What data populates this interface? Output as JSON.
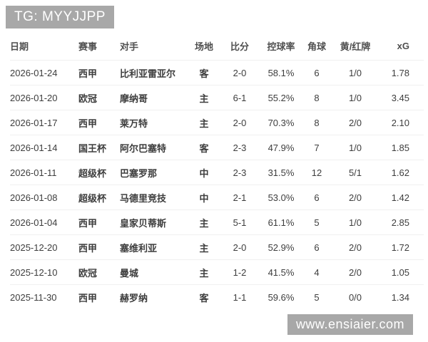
{
  "badges": {
    "top_left": "TG: MYYJJPP",
    "bottom_right": "www.ensiaier.com"
  },
  "colors": {
    "page_bg": "#ffffff",
    "badge_bg": "#a8a8a8",
    "badge_text": "#ffffff",
    "header_text": "#4f4f4f",
    "cell_text": "#3d3d3d",
    "row_border": "#f0f0f0"
  },
  "table": {
    "columns": [
      {
        "key": "date",
        "label": "日期",
        "align": "left",
        "cjk": false
      },
      {
        "key": "competition",
        "label": "赛事",
        "align": "left",
        "cjk": true
      },
      {
        "key": "opponent",
        "label": "对手",
        "align": "left",
        "cjk": true
      },
      {
        "key": "venue",
        "label": "场地",
        "align": "center",
        "cjk": true
      },
      {
        "key": "score",
        "label": "比分",
        "align": "center",
        "cjk": false
      },
      {
        "key": "possession",
        "label": "控球率",
        "align": "center",
        "cjk": false
      },
      {
        "key": "corners",
        "label": "角球",
        "align": "center",
        "cjk": false
      },
      {
        "key": "cards",
        "label": "黄/红牌",
        "align": "center",
        "cjk": false
      },
      {
        "key": "xg",
        "label": "xG",
        "align": "right",
        "cjk": false
      }
    ],
    "rows": [
      {
        "date": "2026-01-24",
        "competition": "西甲",
        "opponent": "比利亚雷亚尔",
        "venue": "客",
        "score": "2-0",
        "possession": "58.1%",
        "corners": "6",
        "cards": "1/0",
        "xg": "1.78"
      },
      {
        "date": "2026-01-20",
        "competition": "欧冠",
        "opponent": "摩纳哥",
        "venue": "主",
        "score": "6-1",
        "possession": "55.2%",
        "corners": "8",
        "cards": "1/0",
        "xg": "3.45"
      },
      {
        "date": "2026-01-17",
        "competition": "西甲",
        "opponent": "莱万特",
        "venue": "主",
        "score": "2-0",
        "possession": "70.3%",
        "corners": "8",
        "cards": "2/0",
        "xg": "2.10"
      },
      {
        "date": "2026-01-14",
        "competition": "国王杯",
        "opponent": "阿尔巴塞特",
        "venue": "客",
        "score": "2-3",
        "possession": "47.9%",
        "corners": "7",
        "cards": "1/0",
        "xg": "1.85"
      },
      {
        "date": "2026-01-11",
        "competition": "超级杯",
        "opponent": "巴塞罗那",
        "venue": "中",
        "score": "2-3",
        "possession": "31.5%",
        "corners": "12",
        "cards": "5/1",
        "xg": "1.62"
      },
      {
        "date": "2026-01-08",
        "competition": "超级杯",
        "opponent": "马德里竞技",
        "venue": "中",
        "score": "2-1",
        "possession": "53.0%",
        "corners": "6",
        "cards": "2/0",
        "xg": "1.42"
      },
      {
        "date": "2026-01-04",
        "competition": "西甲",
        "opponent": "皇家贝蒂斯",
        "venue": "主",
        "score": "5-1",
        "possession": "61.1%",
        "corners": "5",
        "cards": "1/0",
        "xg": "2.85"
      },
      {
        "date": "2025-12-20",
        "competition": "西甲",
        "opponent": "塞维利亚",
        "venue": "主",
        "score": "2-0",
        "possession": "52.9%",
        "corners": "6",
        "cards": "2/0",
        "xg": "1.72"
      },
      {
        "date": "2025-12-10",
        "competition": "欧冠",
        "opponent": "曼城",
        "venue": "主",
        "score": "1-2",
        "possession": "41.5%",
        "corners": "4",
        "cards": "2/0",
        "xg": "1.05"
      },
      {
        "date": "2025-11-30",
        "competition": "西甲",
        "opponent": "赫罗纳",
        "venue": "客",
        "score": "1-1",
        "possession": "59.6%",
        "corners": "5",
        "cards": "0/0",
        "xg": "1.34"
      }
    ]
  }
}
